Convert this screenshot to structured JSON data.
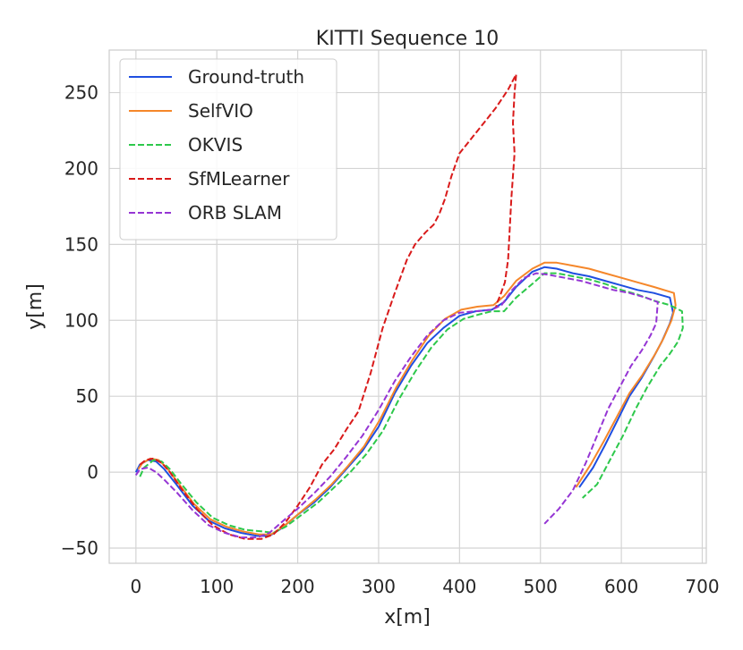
{
  "chart_data": {
    "type": "line",
    "title": "KITTI Sequence 10",
    "xlabel": "x[m]",
    "ylabel": "y[m]",
    "xlim": [
      -33,
      705
    ],
    "ylim": [
      -60,
      278
    ],
    "xticks": [
      0,
      100,
      200,
      300,
      400,
      500,
      600,
      700
    ],
    "yticks": [
      -50,
      0,
      50,
      100,
      150,
      200,
      250
    ],
    "xtick_labels": [
      "0",
      "100",
      "200",
      "300",
      "400",
      "500",
      "600",
      "700"
    ],
    "ytick_labels": [
      "−50",
      "0",
      "50",
      "100",
      "150",
      "200",
      "250"
    ],
    "grid": true,
    "legend_position": "top-left",
    "series": [
      {
        "name": "Ground-truth",
        "color": "#1f4fe0",
        "dash": "solid",
        "points": [
          [
            0,
            0
          ],
          [
            5,
            5
          ],
          [
            15,
            8
          ],
          [
            25,
            7
          ],
          [
            35,
            2
          ],
          [
            50,
            -8
          ],
          [
            70,
            -22
          ],
          [
            90,
            -32
          ],
          [
            110,
            -37
          ],
          [
            130,
            -40
          ],
          [
            150,
            -42
          ],
          [
            165,
            -42
          ],
          [
            180,
            -37
          ],
          [
            200,
            -28
          ],
          [
            220,
            -20
          ],
          [
            240,
            -10
          ],
          [
            260,
            2
          ],
          [
            280,
            14
          ],
          [
            300,
            30
          ],
          [
            320,
            52
          ],
          [
            340,
            70
          ],
          [
            360,
            85
          ],
          [
            380,
            95
          ],
          [
            400,
            103
          ],
          [
            420,
            106
          ],
          [
            440,
            107
          ],
          [
            455,
            112
          ],
          [
            470,
            122
          ],
          [
            490,
            132
          ],
          [
            505,
            135
          ],
          [
            520,
            134
          ],
          [
            540,
            131
          ],
          [
            560,
            129
          ],
          [
            580,
            126
          ],
          [
            600,
            123
          ],
          [
            620,
            120
          ],
          [
            640,
            118
          ],
          [
            660,
            115
          ],
          [
            664,
            105
          ],
          [
            660,
            98
          ],
          [
            650,
            86
          ],
          [
            640,
            76
          ],
          [
            625,
            62
          ],
          [
            610,
            50
          ],
          [
            595,
            34
          ],
          [
            580,
            18
          ],
          [
            565,
            3
          ],
          [
            548,
            -10
          ]
        ]
      },
      {
        "name": "SelfVIO",
        "color": "#f5872a",
        "dash": "solid",
        "points": [
          [
            3,
            2
          ],
          [
            8,
            6
          ],
          [
            18,
            9
          ],
          [
            28,
            8
          ],
          [
            38,
            3
          ],
          [
            52,
            -7
          ],
          [
            72,
            -21
          ],
          [
            92,
            -31
          ],
          [
            112,
            -36
          ],
          [
            132,
            -39
          ],
          [
            152,
            -41
          ],
          [
            167,
            -41
          ],
          [
            182,
            -36
          ],
          [
            202,
            -27
          ],
          [
            222,
            -18
          ],
          [
            242,
            -8
          ],
          [
            262,
            4
          ],
          [
            282,
            17
          ],
          [
            302,
            35
          ],
          [
            322,
            56
          ],
          [
            342,
            74
          ],
          [
            362,
            90
          ],
          [
            382,
            101
          ],
          [
            402,
            107
          ],
          [
            422,
            109
          ],
          [
            442,
            110
          ],
          [
            455,
            116
          ],
          [
            470,
            126
          ],
          [
            490,
            134
          ],
          [
            505,
            138
          ],
          [
            520,
            138
          ],
          [
            540,
            136
          ],
          [
            560,
            134
          ],
          [
            580,
            131
          ],
          [
            600,
            128
          ],
          [
            620,
            125
          ],
          [
            640,
            122
          ],
          [
            665,
            118
          ],
          [
            667,
            110
          ],
          [
            662,
            100
          ],
          [
            652,
            88
          ],
          [
            642,
            78
          ],
          [
            626,
            64
          ],
          [
            610,
            52
          ],
          [
            594,
            36
          ],
          [
            578,
            20
          ],
          [
            562,
            5
          ],
          [
            544,
            -10
          ]
        ]
      },
      {
        "name": "OKVIS",
        "color": "#2dc84b",
        "dash": "dash",
        "points": [
          [
            5,
            -3
          ],
          [
            10,
            3
          ],
          [
            22,
            8
          ],
          [
            32,
            7
          ],
          [
            42,
            2
          ],
          [
            55,
            -7
          ],
          [
            75,
            -20
          ],
          [
            95,
            -30
          ],
          [
            115,
            -35
          ],
          [
            135,
            -38
          ],
          [
            155,
            -39
          ],
          [
            170,
            -40
          ],
          [
            185,
            -36
          ],
          [
            205,
            -28
          ],
          [
            225,
            -20
          ],
          [
            245,
            -10
          ],
          [
            265,
            0
          ],
          [
            285,
            12
          ],
          [
            305,
            27
          ],
          [
            325,
            48
          ],
          [
            345,
            66
          ],
          [
            365,
            82
          ],
          [
            385,
            94
          ],
          [
            405,
            101
          ],
          [
            425,
            104
          ],
          [
            440,
            106
          ],
          [
            455,
            106
          ],
          [
            470,
            115
          ],
          [
            490,
            124
          ],
          [
            505,
            131
          ],
          [
            520,
            131
          ],
          [
            540,
            129
          ],
          [
            560,
            127
          ],
          [
            580,
            124
          ],
          [
            600,
            120
          ],
          [
            620,
            117
          ],
          [
            640,
            113
          ],
          [
            660,
            110
          ],
          [
            675,
            106
          ],
          [
            676,
            95
          ],
          [
            670,
            86
          ],
          [
            660,
            78
          ],
          [
            648,
            70
          ],
          [
            632,
            56
          ],
          [
            618,
            42
          ],
          [
            602,
            24
          ],
          [
            586,
            8
          ],
          [
            570,
            -8
          ],
          [
            552,
            -17
          ]
        ]
      },
      {
        "name": "SfMLearner",
        "color": "#d91a1a",
        "dash": "dash",
        "points": [
          [
            5,
            5
          ],
          [
            12,
            8
          ],
          [
            22,
            9
          ],
          [
            32,
            6
          ],
          [
            42,
            0
          ],
          [
            55,
            -10
          ],
          [
            75,
            -24
          ],
          [
            95,
            -35
          ],
          [
            115,
            -41
          ],
          [
            135,
            -44
          ],
          [
            155,
            -44
          ],
          [
            170,
            -41
          ],
          [
            185,
            -33
          ],
          [
            200,
            -22
          ],
          [
            215,
            -10
          ],
          [
            230,
            5
          ],
          [
            245,
            15
          ],
          [
            260,
            28
          ],
          [
            275,
            40
          ],
          [
            290,
            65
          ],
          [
            305,
            95
          ],
          [
            320,
            118
          ],
          [
            335,
            140
          ],
          [
            345,
            150
          ],
          [
            358,
            158
          ],
          [
            368,
            163
          ],
          [
            375,
            170
          ],
          [
            382,
            180
          ],
          [
            390,
            195
          ],
          [
            400,
            210
          ],
          [
            415,
            220
          ],
          [
            430,
            230
          ],
          [
            445,
            240
          ],
          [
            460,
            252
          ],
          [
            470,
            262
          ],
          [
            468,
            250
          ],
          [
            466,
            230
          ],
          [
            468,
            210
          ],
          [
            466,
            195
          ],
          [
            464,
            180
          ],
          [
            462,
            160
          ],
          [
            460,
            140
          ],
          [
            456,
            125
          ],
          [
            450,
            116
          ],
          [
            446,
            111
          ],
          [
            445,
            108
          ]
        ]
      },
      {
        "name": "ORB SLAM",
        "color": "#9535d4",
        "dash": "dash",
        "points": [
          [
            0,
            -2
          ],
          [
            5,
            2
          ],
          [
            15,
            3
          ],
          [
            25,
            0
          ],
          [
            35,
            -5
          ],
          [
            50,
            -13
          ],
          [
            70,
            -25
          ],
          [
            90,
            -35
          ],
          [
            110,
            -40
          ],
          [
            130,
            -43
          ],
          [
            150,
            -43
          ],
          [
            165,
            -40
          ],
          [
            180,
            -33
          ],
          [
            200,
            -24
          ],
          [
            220,
            -14
          ],
          [
            240,
            -3
          ],
          [
            260,
            10
          ],
          [
            280,
            24
          ],
          [
            300,
            41
          ],
          [
            320,
            60
          ],
          [
            340,
            76
          ],
          [
            360,
            90
          ],
          [
            380,
            100
          ],
          [
            400,
            105
          ],
          [
            420,
            106
          ],
          [
            440,
            107
          ],
          [
            452,
            110
          ],
          [
            465,
            120
          ],
          [
            480,
            128
          ],
          [
            495,
            131
          ],
          [
            510,
            130
          ],
          [
            530,
            128
          ],
          [
            550,
            126
          ],
          [
            570,
            123
          ],
          [
            590,
            120
          ],
          [
            610,
            118
          ],
          [
            630,
            115
          ],
          [
            645,
            112
          ],
          [
            643,
            98
          ],
          [
            636,
            90
          ],
          [
            625,
            80
          ],
          [
            612,
            70
          ],
          [
            598,
            56
          ],
          [
            584,
            42
          ],
          [
            570,
            24
          ],
          [
            556,
            6
          ],
          [
            540,
            -12
          ],
          [
            523,
            -24
          ],
          [
            505,
            -34
          ]
        ]
      }
    ]
  }
}
